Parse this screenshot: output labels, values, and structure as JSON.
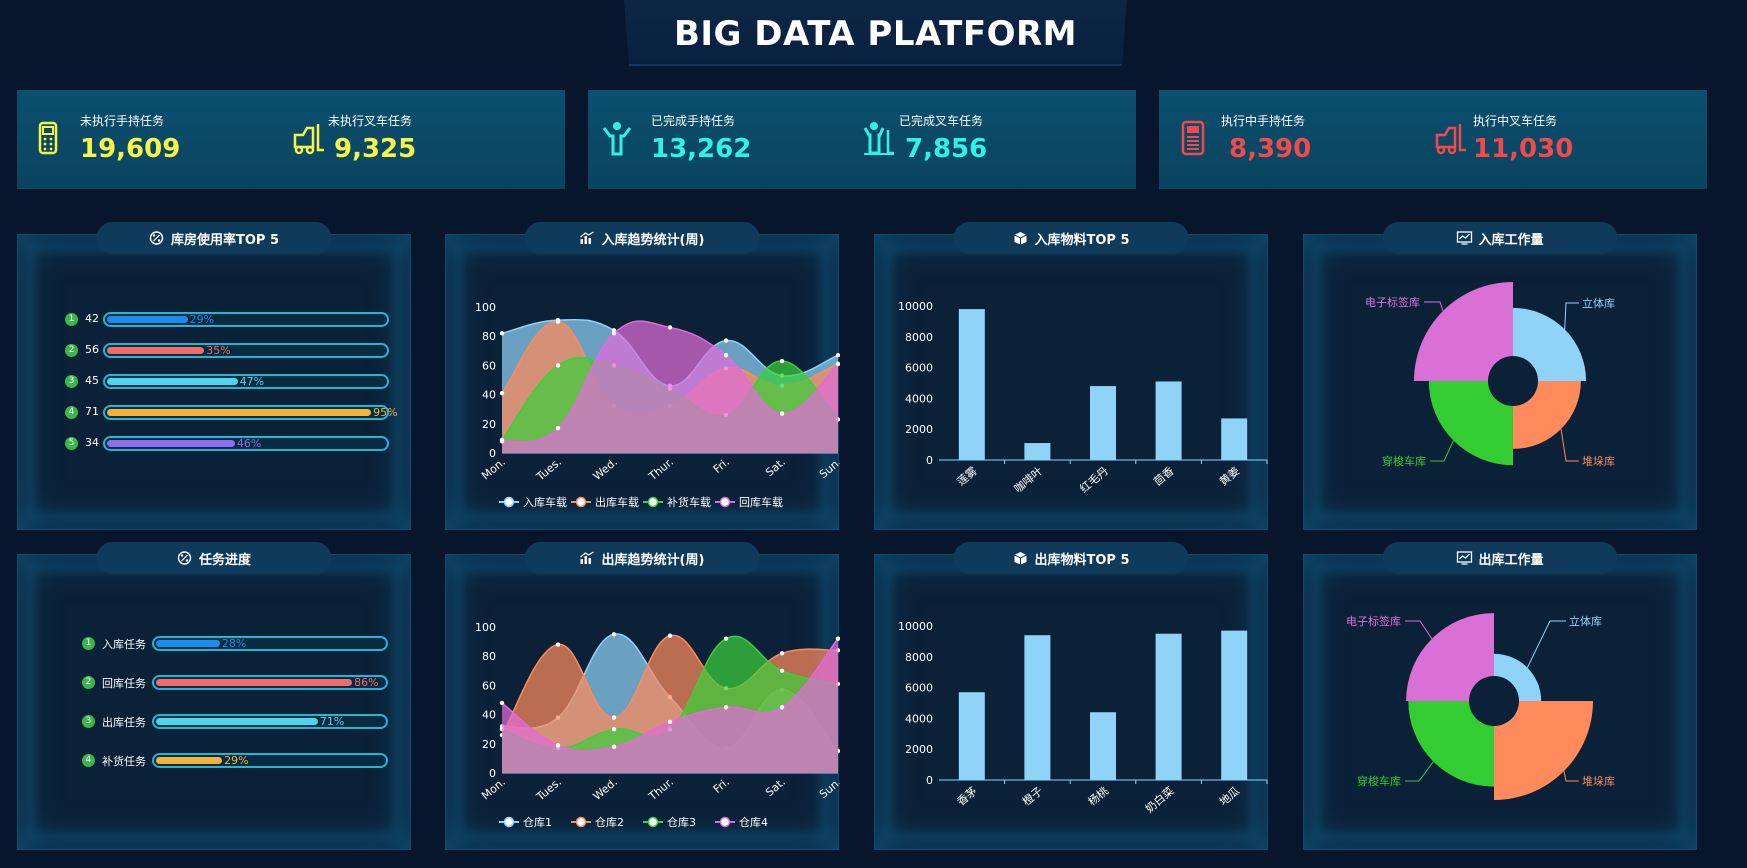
{
  "header": {
    "title": "BIG DATA PLATFORM"
  },
  "stats": [
    {
      "items": [
        {
          "label": "未执行手持任务",
          "value": "19,609",
          "color": "#f7f347",
          "icon": "handheld-device-icon"
        },
        {
          "label": "未执行叉车任务",
          "value": "9,325",
          "color": "#f7f347",
          "icon": "forklift-icon"
        }
      ]
    },
    {
      "items": [
        {
          "label": "已完成手持任务",
          "value": "13,262",
          "color": "#2ef2e6",
          "icon": "worker-icon"
        },
        {
          "label": "已完成叉车任务",
          "value": "7,856",
          "color": "#2ef2e6",
          "icon": "worker-forklift-icon"
        }
      ]
    },
    {
      "items": [
        {
          "label": "执行中手持任务",
          "value": "8,390",
          "color": "#f24a4a",
          "icon": "scanner-icon"
        },
        {
          "label": "执行中叉车任务",
          "value": "11,030",
          "color": "#f24a4a",
          "icon": "forklift-icon"
        }
      ]
    }
  ],
  "panels": {
    "warehouse_usage": {
      "title": "库房使用率TOP 5",
      "rows": [
        {
          "rank": "1",
          "label": "42",
          "pct": 29,
          "pct_text": "29%",
          "color": "#1a8cf0",
          "text_color": "#1a8cf0"
        },
        {
          "rank": "2",
          "label": "56",
          "pct": 35,
          "pct_text": "35%",
          "color": "#f26b6b",
          "text_color": "#f26b6b"
        },
        {
          "rank": "3",
          "label": "45",
          "pct": 47,
          "pct_text": "47%",
          "color": "#4ed4ec",
          "text_color": "#4ed4ec"
        },
        {
          "rank": "4",
          "label": "71",
          "pct": 95,
          "pct_text": "95%",
          "color": "#f4b23a",
          "text_color": "#f4b23a"
        },
        {
          "rank": "5",
          "label": "34",
          "pct": 46,
          "pct_text": "46%",
          "color": "#8c6cf0",
          "text_color": "#8c6cf0"
        }
      ]
    },
    "task_progress": {
      "title": "任务进度",
      "rows": [
        {
          "rank": "1",
          "label": "入库任务",
          "pct": 28,
          "pct_text": "28%",
          "color": "#1a8cf0",
          "text_color": "#1a8cf0"
        },
        {
          "rank": "2",
          "label": "回库任务",
          "pct": 86,
          "pct_text": "86%",
          "color": "#f26b6b",
          "text_color": "#f26b6b"
        },
        {
          "rank": "3",
          "label": "出库任务",
          "pct": 71,
          "pct_text": "71%",
          "color": "#4ed4ec",
          "text_color": "#4ed4ec"
        },
        {
          "rank": "4",
          "label": "补货任务",
          "pct": 29,
          "pct_text": "29%",
          "color": "#f4b23a",
          "text_color": "#f4b23a"
        }
      ]
    },
    "inbound_trend": {
      "title": "入库趋势统计(周)"
    },
    "outbound_trend": {
      "title": "出库趋势统计(周)"
    },
    "inbound_top": {
      "title": "入库物料TOP 5"
    },
    "outbound_top": {
      "title": "出库物料TOP 5"
    },
    "inbound_work": {
      "title": "入库工作量"
    },
    "outbound_work": {
      "title": "出库工作量"
    }
  },
  "chart_data": [
    {
      "id": "inbound_trend",
      "type": "area",
      "x": [
        "Mon.",
        "Tues.",
        "Wed.",
        "Thur.",
        "Fri.",
        "Sat.",
        "Sun."
      ],
      "ylim": [
        0,
        100
      ],
      "yticks": [
        "0",
        "20",
        "40",
        "60",
        "80",
        "100"
      ],
      "series": [
        {
          "name": "入库车载",
          "values": [
            82,
            91,
            84,
            46,
            77,
            53,
            67
          ],
          "color": "#8fd3f8"
        },
        {
          "name": "出库车载",
          "values": [
            41,
            90,
            32,
            32,
            58,
            46,
            61
          ],
          "color": "#ff8a5c"
        },
        {
          "name": "补货车载",
          "values": [
            9,
            60,
            60,
            44,
            26,
            63,
            23
          ],
          "color": "#3bcf3b"
        },
        {
          "name": "回库车载",
          "values": [
            8,
            17,
            82,
            86,
            67,
            27,
            61
          ],
          "color": "#e06cd8"
        }
      ],
      "legend": "bottom"
    },
    {
      "id": "outbound_trend",
      "type": "area",
      "x": [
        "Mon.",
        "Tues.",
        "Wed.",
        "Thur.",
        "Fri.",
        "Sat.",
        "Sun."
      ],
      "ylim": [
        0,
        100
      ],
      "yticks": [
        "0",
        "20",
        "40",
        "60",
        "80",
        "100"
      ],
      "series": [
        {
          "name": "仓库1",
          "values": [
            32,
            38,
            95,
            52,
            17,
            57,
            15
          ],
          "color": "#8fd3f8"
        },
        {
          "name": "仓库2",
          "values": [
            26,
            88,
            38,
            94,
            58,
            82,
            84
          ],
          "color": "#ff8a5c"
        },
        {
          "name": "仓库3",
          "values": [
            30,
            17,
            30,
            30,
            92,
            70,
            61
          ],
          "color": "#3bcf3b"
        },
        {
          "name": "仓库4",
          "values": [
            48,
            19,
            18,
            35,
            45,
            45,
            92
          ],
          "color": "#e06cd8"
        }
      ],
      "legend": "bottom"
    },
    {
      "id": "inbound_top",
      "type": "bar",
      "categories": [
        "莲雾",
        "咖啡叶",
        "红毛丹",
        "茴香",
        "黄姜"
      ],
      "values": [
        9800,
        1100,
        4800,
        5100,
        2700
      ],
      "ylim": [
        0,
        10000
      ],
      "yticks": [
        "0",
        "2000",
        "4000",
        "6000",
        "8000",
        "10000"
      ],
      "color": "#8fd3f8"
    },
    {
      "id": "outbound_top",
      "type": "bar",
      "categories": [
        "香茅",
        "橙子",
        "杨桃",
        "奶白菜",
        "地瓜"
      ],
      "values": [
        5700,
        9400,
        4400,
        9500,
        9700
      ],
      "ylim": [
        0,
        10000
      ],
      "yticks": [
        "0",
        "2000",
        "4000",
        "6000",
        "8000",
        "10000"
      ],
      "color": "#8fd3f8"
    },
    {
      "id": "inbound_work",
      "type": "pie",
      "rose": true,
      "slices": [
        {
          "name": "立体库",
          "value": 65,
          "color": "#8fd3f8"
        },
        {
          "name": "堆垛库",
          "value": 58,
          "color": "#ff8a5c"
        },
        {
          "name": "穿梭车库",
          "value": 80,
          "color": "#33cc33"
        },
        {
          "name": "电子标签库",
          "value": 100,
          "color": "#da70d6"
        }
      ]
    },
    {
      "id": "outbound_work",
      "type": "pie",
      "rose": true,
      "slices": [
        {
          "name": "立体库",
          "value": 30,
          "color": "#8fd3f8"
        },
        {
          "name": "堆垛库",
          "value": 100,
          "color": "#ff8a5c"
        },
        {
          "name": "穿梭车库",
          "value": 82,
          "color": "#33cc33"
        },
        {
          "name": "电子标签库",
          "value": 85,
          "color": "#da70d6"
        }
      ]
    }
  ]
}
